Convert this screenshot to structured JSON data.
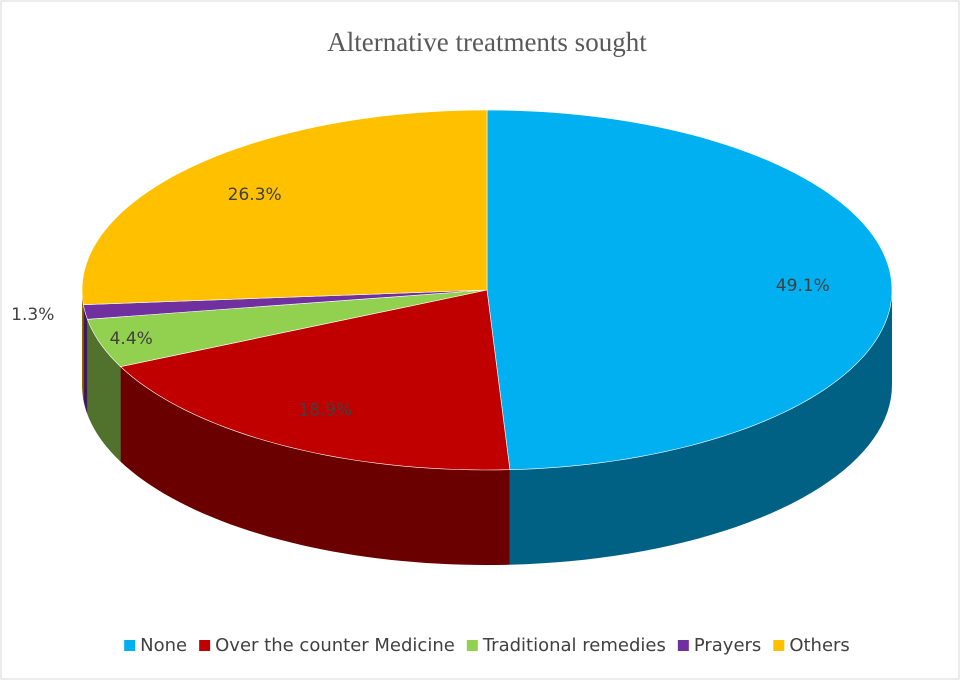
{
  "chart_data": {
    "type": "pie",
    "title": "Alternative treatments sought",
    "categories": [
      "None",
      "Over the counter Medicine",
      "Traditional remedies",
      "Prayers",
      "Others"
    ],
    "values": [
      49.1,
      18.9,
      4.4,
      1.3,
      26.3
    ],
    "value_labels": [
      "49.1%",
      "18.9%",
      "4.4%",
      "1.3%",
      "26.3%"
    ],
    "colors": [
      "#00b0f0",
      "#c00000",
      "#92d050",
      "#7030a0",
      "#ffc000"
    ],
    "legend": "bottom"
  }
}
